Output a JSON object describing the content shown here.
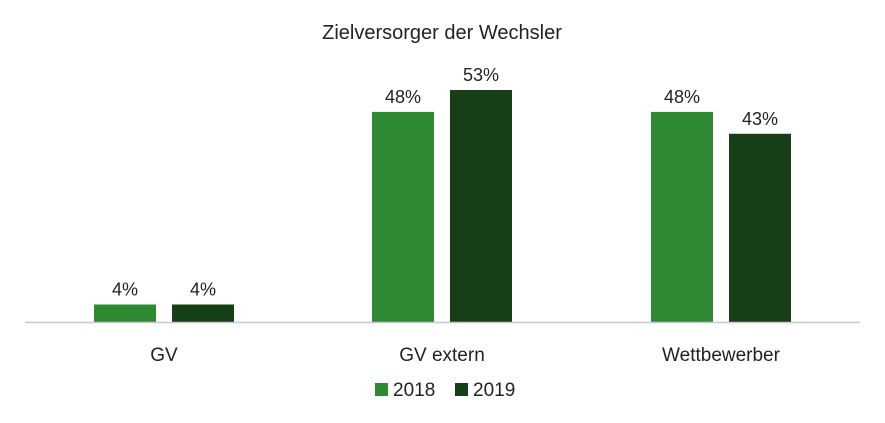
{
  "chart_data": {
    "type": "bar",
    "title": "Zielversorger der Wechsler",
    "categories": [
      "GV",
      "GV extern",
      "Wettbewerber"
    ],
    "series": [
      {
        "name": "2018",
        "values": [
          4,
          48,
          48
        ],
        "color": "#2e8b33"
      },
      {
        "name": "2019",
        "values": [
          4,
          53,
          43
        ],
        "color": "#163f18"
      }
    ],
    "value_suffix": "%",
    "ylim": [
      0,
      53
    ],
    "grid": false,
    "legend": "bottom-center",
    "axis_color": "#c8c8c8"
  }
}
